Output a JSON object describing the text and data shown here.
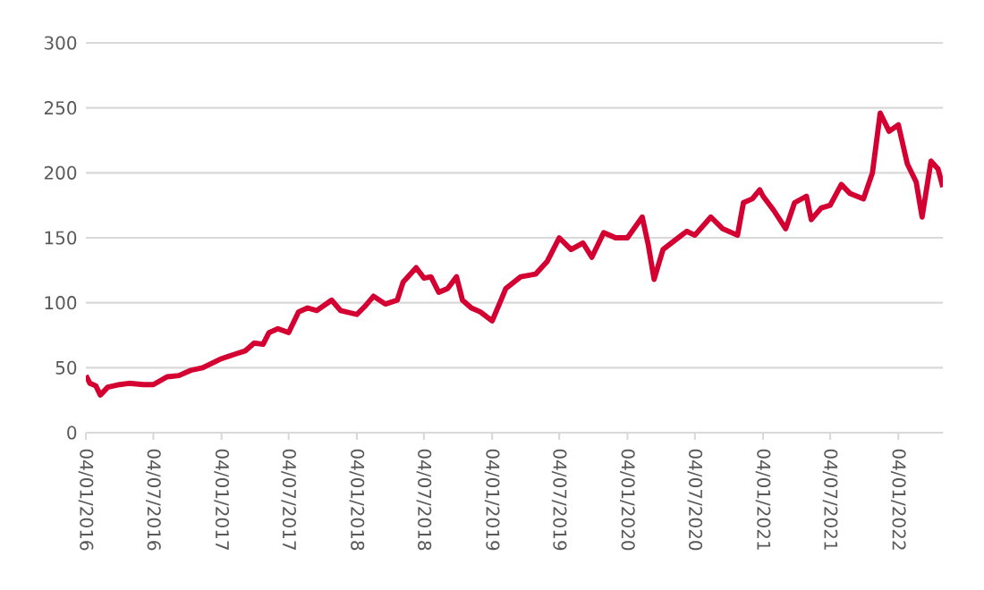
{
  "chart_data": {
    "type": "line",
    "x": [
      "2016-01-04",
      "2016-01-15",
      "2016-01-31",
      "2016-02-12",
      "2016-03-03",
      "2016-04-04",
      "2016-04-29",
      "2016-06-08",
      "2016-07-04",
      "2016-08-10",
      "2016-09-11",
      "2016-10-13",
      "2016-11-14",
      "2017-01-04",
      "2017-02-05",
      "2017-03-09",
      "2017-04-02",
      "2017-04-26",
      "2017-05-12",
      "2017-06-05",
      "2017-07-04",
      "2017-07-31",
      "2017-08-24",
      "2017-09-18",
      "2017-10-28",
      "2017-11-21",
      "2018-01-04",
      "2018-01-25",
      "2018-02-18",
      "2018-03-22",
      "2018-04-23",
      "2018-05-09",
      "2018-06-13",
      "2018-07-04",
      "2018-07-23",
      "2018-08-13",
      "2018-09-06",
      "2018-09-30",
      "2018-10-16",
      "2018-11-09",
      "2018-12-03",
      "2019-01-04",
      "2019-01-25",
      "2019-02-10",
      "2019-03-22",
      "2019-05-01",
      "2019-06-02",
      "2019-07-04",
      "2019-08-05",
      "2019-09-06",
      "2019-09-30",
      "2019-11-01",
      "2019-12-03",
      "2020-01-04",
      "2020-02-13",
      "2020-02-29",
      "2020-03-16",
      "2020-04-09",
      "2020-05-11",
      "2020-06-12",
      "2020-07-04",
      "2020-08-16",
      "2020-09-17",
      "2020-10-27",
      "2020-11-12",
      "2020-12-06",
      "2020-12-26",
      "2021-01-04",
      "2021-02-02",
      "2021-03-06",
      "2021-03-30",
      "2021-05-01",
      "2021-05-14",
      "2021-06-10",
      "2021-07-04",
      "2021-08-03",
      "2021-08-27",
      "2021-10-02",
      "2021-10-26",
      "2021-11-16",
      "2021-12-10",
      "2022-01-04",
      "2022-01-28",
      "2022-02-21",
      "2022-03-09",
      "2022-04-02",
      "2022-04-21",
      "2022-05-04"
    ],
    "series": [
      {
        "color": "#d50032",
        "values": [
          44,
          38,
          36,
          29,
          35,
          37,
          38,
          37,
          37,
          43,
          44,
          48,
          50,
          57,
          60,
          63,
          69,
          68,
          77,
          80,
          77,
          93,
          96,
          94,
          102,
          94,
          91,
          97,
          105,
          99,
          102,
          116,
          127,
          119,
          120,
          108,
          111,
          120,
          102,
          96,
          93,
          86,
          100,
          111,
          120,
          122,
          132,
          150,
          141,
          146,
          135,
          154,
          150,
          150,
          166,
          145,
          118,
          141,
          148,
          155,
          152,
          166,
          157,
          152,
          177,
          180,
          187,
          182,
          171,
          157,
          177,
          182,
          164,
          173,
          175,
          191,
          184,
          180,
          200,
          246,
          232,
          237,
          207,
          193,
          166,
          209,
          203,
          189
        ]
      }
    ],
    "xlim": [
      "2016-01-04",
      "2022-05-04"
    ],
    "xticks": [
      {
        "value": "2016-01-04",
        "label": "04/01/2016"
      },
      {
        "value": "2016-07-04",
        "label": "04/07/2016"
      },
      {
        "value": "2017-01-04",
        "label": "04/01/2017"
      },
      {
        "value": "2017-07-04",
        "label": "04/07/2017"
      },
      {
        "value": "2018-01-04",
        "label": "04/01/2018"
      },
      {
        "value": "2018-07-04",
        "label": "04/07/2018"
      },
      {
        "value": "2019-01-04",
        "label": "04/01/2019"
      },
      {
        "value": "2019-07-04",
        "label": "04/07/2019"
      },
      {
        "value": "2020-01-04",
        "label": "04/01/2020"
      },
      {
        "value": "2020-07-04",
        "label": "04/07/2020"
      },
      {
        "value": "2021-01-04",
        "label": "04/01/2021"
      },
      {
        "value": "2021-07-04",
        "label": "04/07/2021"
      },
      {
        "value": "2022-01-04",
        "label": "04/01/2022"
      }
    ],
    "ylim": [
      0,
      300
    ],
    "yticks": [
      0,
      50,
      100,
      150,
      200,
      250,
      300
    ],
    "grid": "y"
  }
}
